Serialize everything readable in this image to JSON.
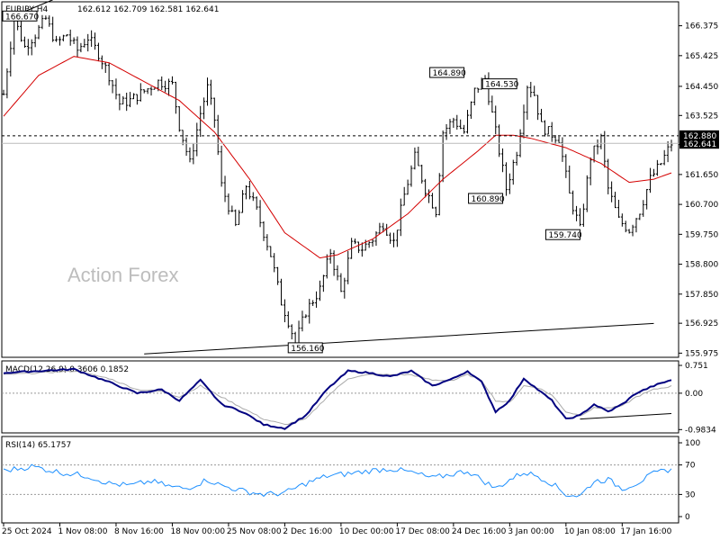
{
  "chart_data": [
    {
      "type": "candlestick",
      "title": "EURJPY,H4",
      "ohlc_header": "162.612 162.709 162.581 162.641",
      "watermark": "Action Forex",
      "y_ticks": [
        "166.375",
        "165.425",
        "164.450",
        "163.525",
        "162.600",
        "161.650",
        "160.700",
        "159.750",
        "158.800",
        "157.850",
        "156.925",
        "155.975"
      ],
      "ylim": [
        155.9,
        167.05
      ],
      "current_price_label": "162.641",
      "reference_price_label": "162.880",
      "reference_price": 162.88,
      "current_price": 162.641,
      "annotations": [
        {
          "label": "166.670",
          "x_index": 3,
          "price": 166.67
        },
        {
          "label": "164.890",
          "x_index": 131,
          "price": 164.89
        },
        {
          "label": "164.530",
          "x_index": 146,
          "price": 164.53
        },
        {
          "label": "160.890",
          "x_index": 142,
          "price": 160.89
        },
        {
          "label": "159.740",
          "x_index": 164,
          "price": 159.74
        },
        {
          "label": "156.160",
          "x_index": 82,
          "price": 156.16
        }
      ],
      "trendlines": [
        {
          "from": [
            0,
            166.55
          ],
          "to": [
            14,
            167.2
          ]
        },
        {
          "from": [
            40,
            155.95
          ],
          "to": [
            185,
            156.92
          ]
        }
      ],
      "anchor_points": [
        [
          0,
          164.2
        ],
        [
          3,
          166.6
        ],
        [
          6,
          165.7
        ],
        [
          9,
          166.1
        ],
        [
          12,
          166.6
        ],
        [
          15,
          165.8
        ],
        [
          18,
          166.1
        ],
        [
          21,
          165.6
        ],
        [
          24,
          166.0
        ],
        [
          27,
          165.5
        ],
        [
          30,
          164.8
        ],
        [
          33,
          163.9
        ],
        [
          36,
          164.0
        ],
        [
          40,
          164.3
        ],
        [
          44,
          164.6
        ],
        [
          48,
          164.5
        ],
        [
          50,
          163.2
        ],
        [
          53,
          162.0
        ],
        [
          56,
          163.6
        ],
        [
          58,
          164.4
        ],
        [
          60,
          163.4
        ],
        [
          62,
          161.3
        ],
        [
          66,
          160.0
        ],
        [
          69,
          161.3
        ],
        [
          72,
          160.5
        ],
        [
          76,
          159.1
        ],
        [
          79,
          157.6
        ],
        [
          81,
          157.0
        ],
        [
          83,
          156.3
        ],
        [
          86,
          157.3
        ],
        [
          90,
          158.0
        ],
        [
          93,
          159.2
        ],
        [
          96,
          157.9
        ],
        [
          99,
          159.4
        ],
        [
          102,
          159.3
        ],
        [
          105,
          159.6
        ],
        [
          108,
          160.1
        ],
        [
          111,
          159.5
        ],
        [
          114,
          161.0
        ],
        [
          117,
          162.2
        ],
        [
          120,
          161.2
        ],
        [
          123,
          160.5
        ],
        [
          125,
          163.0
        ],
        [
          128,
          163.4
        ],
        [
          131,
          163.0
        ],
        [
          134,
          164.3
        ],
        [
          137,
          164.7
        ],
        [
          140,
          163.0
        ],
        [
          143,
          161.2
        ],
        [
          146,
          162.4
        ],
        [
          149,
          164.5
        ],
        [
          151,
          164.2
        ],
        [
          153,
          163.2
        ],
        [
          155,
          163.0
        ],
        [
          158,
          162.8
        ],
        [
          161,
          161.0
        ],
        [
          164,
          159.9
        ],
        [
          167,
          162.2
        ],
        [
          170,
          162.8
        ],
        [
          172,
          161.2
        ],
        [
          175,
          160.2
        ],
        [
          178,
          159.9
        ],
        [
          181,
          160.5
        ],
        [
          184,
          161.5
        ],
        [
          187,
          162.0
        ],
        [
          190,
          162.64
        ]
      ],
      "ma_anchor_points": [
        [
          0,
          163.5
        ],
        [
          10,
          164.8
        ],
        [
          20,
          165.4
        ],
        [
          30,
          165.2
        ],
        [
          40,
          164.6
        ],
        [
          50,
          164.0
        ],
        [
          60,
          163.0
        ],
        [
          70,
          161.5
        ],
        [
          80,
          159.8
        ],
        [
          90,
          159.0
        ],
        [
          95,
          159.1
        ],
        [
          105,
          159.6
        ],
        [
          115,
          160.4
        ],
        [
          125,
          161.5
        ],
        [
          135,
          162.4
        ],
        [
          140,
          162.9
        ],
        [
          145,
          162.9
        ],
        [
          150,
          162.8
        ],
        [
          160,
          162.5
        ],
        [
          170,
          162.0
        ],
        [
          178,
          161.4
        ],
        [
          185,
          161.5
        ],
        [
          190,
          161.7
        ]
      ],
      "x_labels": [
        "25 Oct 2024",
        "1 Nov 08:00",
        "8 Nov 16:00",
        "18 Nov 00:00",
        "25 Nov 08:00",
        "2 Dec 16:00",
        "10 Dec 00:00",
        "17 Dec 08:00",
        "24 Dec 16:00",
        "3 Jan 00:00",
        "10 Jan 08:00",
        "17 Jan 16:00"
      ],
      "x_label_positions": [
        0,
        16,
        32,
        48,
        64,
        80,
        96,
        112,
        128,
        144,
        160,
        176
      ],
      "x_count": 191
    },
    {
      "type": "line",
      "title": "MACD(12,26,9) 0.3606 0.1852",
      "y_ticks": [
        "0.751",
        "0.00",
        "-0.9834"
      ],
      "ylim": [
        -1.0,
        0.8
      ],
      "zero_line": 0,
      "series": [
        {
          "name": "MACD",
          "color": "#000080",
          "anchors": [
            [
              0,
              0.55
            ],
            [
              10,
              0.6
            ],
            [
              20,
              0.65
            ],
            [
              30,
              0.3
            ],
            [
              38,
              0.0
            ],
            [
              45,
              0.1
            ],
            [
              50,
              -0.2
            ],
            [
              56,
              0.35
            ],
            [
              62,
              -0.3
            ],
            [
              68,
              -0.5
            ],
            [
              74,
              -0.85
            ],
            [
              80,
              -0.95
            ],
            [
              86,
              -0.6
            ],
            [
              92,
              0.1
            ],
            [
              98,
              0.6
            ],
            [
              104,
              0.55
            ],
            [
              110,
              0.45
            ],
            [
              116,
              0.6
            ],
            [
              122,
              0.2
            ],
            [
              128,
              0.4
            ],
            [
              132,
              0.6
            ],
            [
              136,
              0.3
            ],
            [
              140,
              -0.5
            ],
            [
              144,
              -0.2
            ],
            [
              148,
              0.4
            ],
            [
              152,
              0.1
            ],
            [
              156,
              -0.2
            ],
            [
              160,
              -0.7
            ],
            [
              164,
              -0.6
            ],
            [
              168,
              -0.3
            ],
            [
              172,
              -0.5
            ],
            [
              176,
              -0.3
            ],
            [
              180,
              0.0
            ],
            [
              185,
              0.2
            ],
            [
              190,
              0.36
            ]
          ]
        },
        {
          "name": "Signal",
          "color": "#aaaaaa",
          "anchors": [
            [
              0,
              0.5
            ],
            [
              10,
              0.55
            ],
            [
              20,
              0.6
            ],
            [
              30,
              0.4
            ],
            [
              38,
              0.1
            ],
            [
              45,
              0.05
            ],
            [
              50,
              -0.1
            ],
            [
              56,
              0.2
            ],
            [
              62,
              -0.1
            ],
            [
              68,
              -0.4
            ],
            [
              74,
              -0.7
            ],
            [
              80,
              -0.85
            ],
            [
              86,
              -0.7
            ],
            [
              92,
              -0.1
            ],
            [
              98,
              0.4
            ],
            [
              104,
              0.5
            ],
            [
              110,
              0.5
            ],
            [
              116,
              0.5
            ],
            [
              122,
              0.35
            ],
            [
              128,
              0.35
            ],
            [
              132,
              0.5
            ],
            [
              136,
              0.35
            ],
            [
              140,
              -0.2
            ],
            [
              144,
              -0.25
            ],
            [
              148,
              0.2
            ],
            [
              152,
              0.15
            ],
            [
              156,
              -0.05
            ],
            [
              160,
              -0.5
            ],
            [
              164,
              -0.6
            ],
            [
              168,
              -0.4
            ],
            [
              172,
              -0.4
            ],
            [
              176,
              -0.35
            ],
            [
              180,
              -0.1
            ],
            [
              185,
              0.1
            ],
            [
              190,
              0.19
            ]
          ]
        }
      ],
      "trendline": {
        "from": [
          164,
          -0.7
        ],
        "to": [
          190,
          -0.55
        ]
      }
    },
    {
      "type": "line",
      "title": "RSI(14) 65.1757",
      "y_ticks": [
        "100",
        "70",
        "30",
        "0"
      ],
      "ylim": [
        0,
        100
      ],
      "levels": [
        70,
        30
      ],
      "series": [
        {
          "name": "RSI",
          "color": "#1e90ff",
          "anchors": [
            [
              0,
              62
            ],
            [
              8,
              68
            ],
            [
              16,
              60
            ],
            [
              24,
              55
            ],
            [
              30,
              45
            ],
            [
              36,
              42
            ],
            [
              42,
              48
            ],
            [
              48,
              40
            ],
            [
              52,
              38
            ],
            [
              58,
              50
            ],
            [
              62,
              42
            ],
            [
              68,
              35
            ],
            [
              74,
              30
            ],
            [
              80,
              32
            ],
            [
              86,
              45
            ],
            [
              92,
              55
            ],
            [
              98,
              58
            ],
            [
              104,
              62
            ],
            [
              110,
              65
            ],
            [
              116,
              60
            ],
            [
              122,
              52
            ],
            [
              128,
              58
            ],
            [
              132,
              62
            ],
            [
              136,
              50
            ],
            [
              140,
              38
            ],
            [
              144,
              50
            ],
            [
              148,
              60
            ],
            [
              152,
              55
            ],
            [
              156,
              45
            ],
            [
              160,
              30
            ],
            [
              164,
              28
            ],
            [
              168,
              48
            ],
            [
              172,
              50
            ],
            [
              176,
              38
            ],
            [
              180,
              45
            ],
            [
              185,
              58
            ],
            [
              190,
              65
            ]
          ]
        }
      ]
    }
  ]
}
